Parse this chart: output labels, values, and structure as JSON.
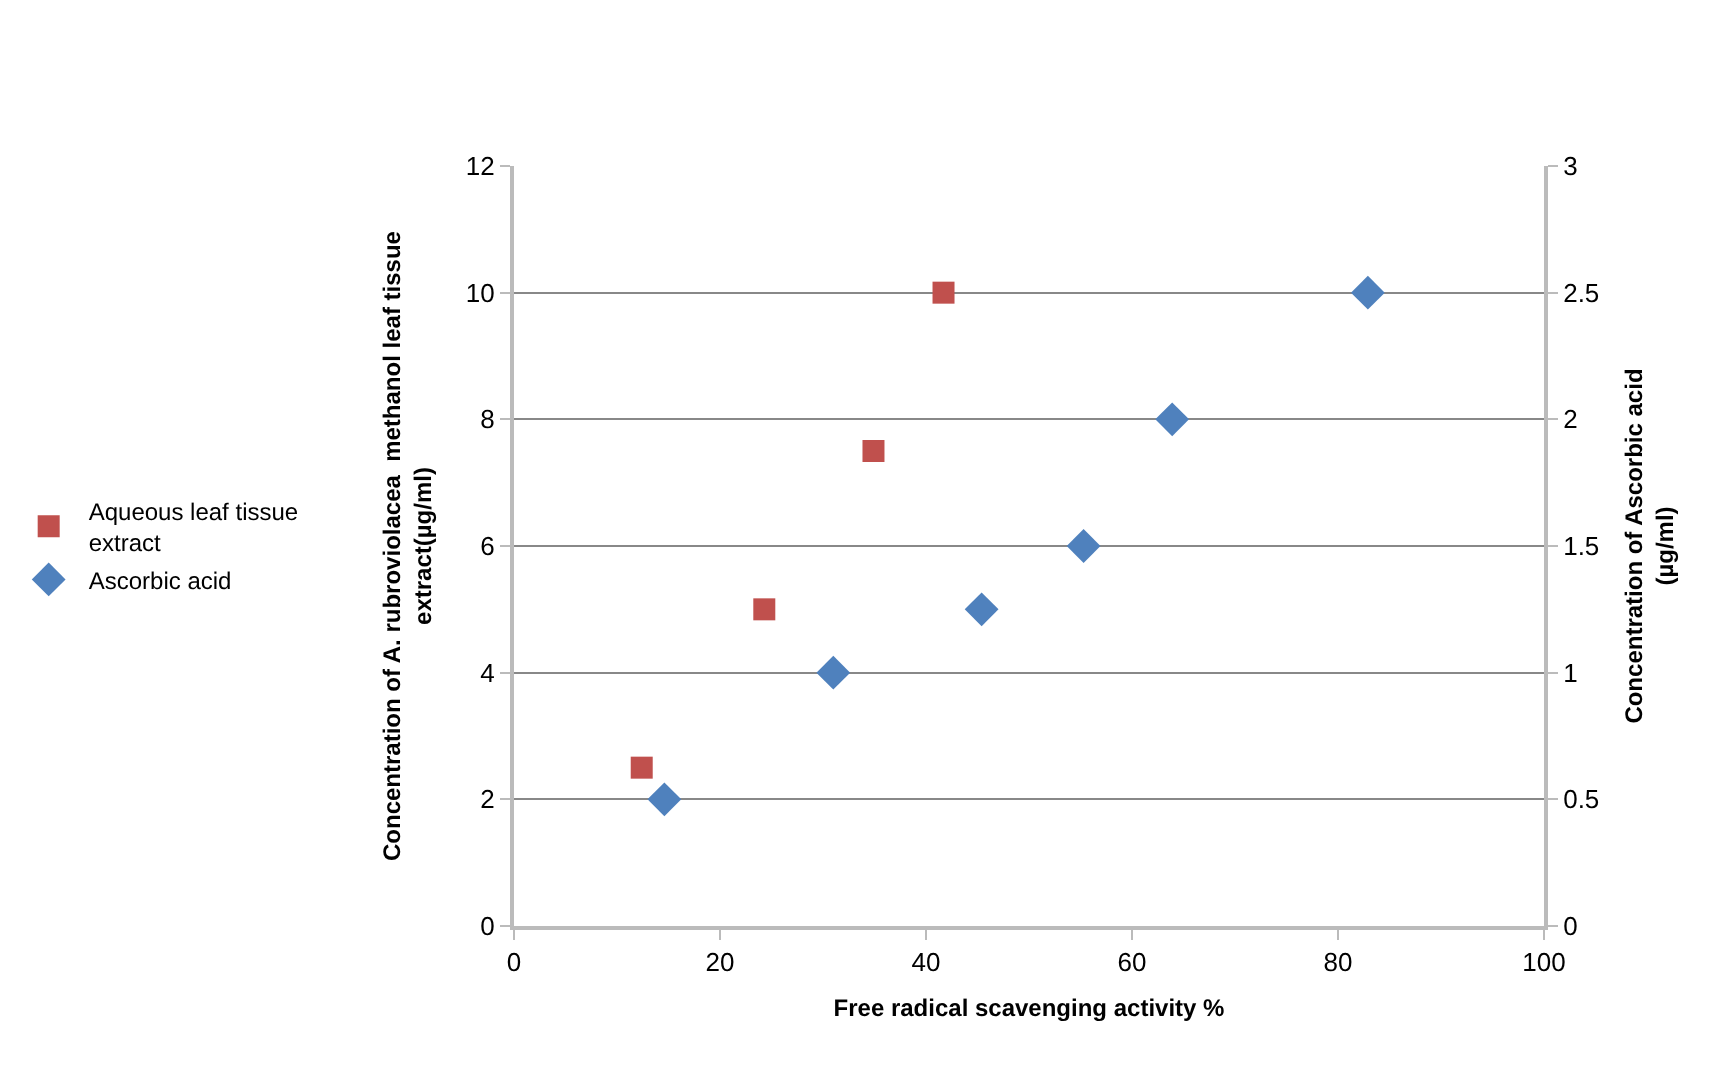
{
  "chart_data": {
    "type": "scatter",
    "xlabel": "Free radical scavenging activity %",
    "ylabel": "Concentration of A. rubroviolacea  methanol leaf tissue extract(µg/ml)",
    "y2label": "Concentration of Ascorbic acid (µg/ml)",
    "xlim": [
      0,
      100
    ],
    "xticks": [
      0,
      20,
      40,
      60,
      80,
      100
    ],
    "ylim": [
      0,
      12
    ],
    "yticks": [
      0,
      2,
      4,
      6,
      8,
      10,
      12
    ],
    "y2lim": [
      0,
      3
    ],
    "y2ticks": [
      0,
      0.5,
      1,
      1.5,
      2,
      2.5,
      3
    ],
    "grid": "y",
    "legend": "left",
    "series": [
      {
        "name": "Aqueous leaf tissue extract",
        "color": "#c0504d",
        "marker": "square",
        "x": [
          12.4,
          24.3,
          34.9,
          41.7
        ],
        "values": [
          2.5,
          5,
          7.5,
          10
        ]
      },
      {
        "name": "Ascorbic acid",
        "color": "#4f81bd",
        "marker": "diamond",
        "axis": "y2",
        "x": [
          14.6,
          31,
          45.4,
          55.3,
          63.9,
          82.9
        ],
        "values": [
          0.5,
          1,
          1.25,
          1.5,
          2,
          2.5
        ]
      }
    ]
  }
}
